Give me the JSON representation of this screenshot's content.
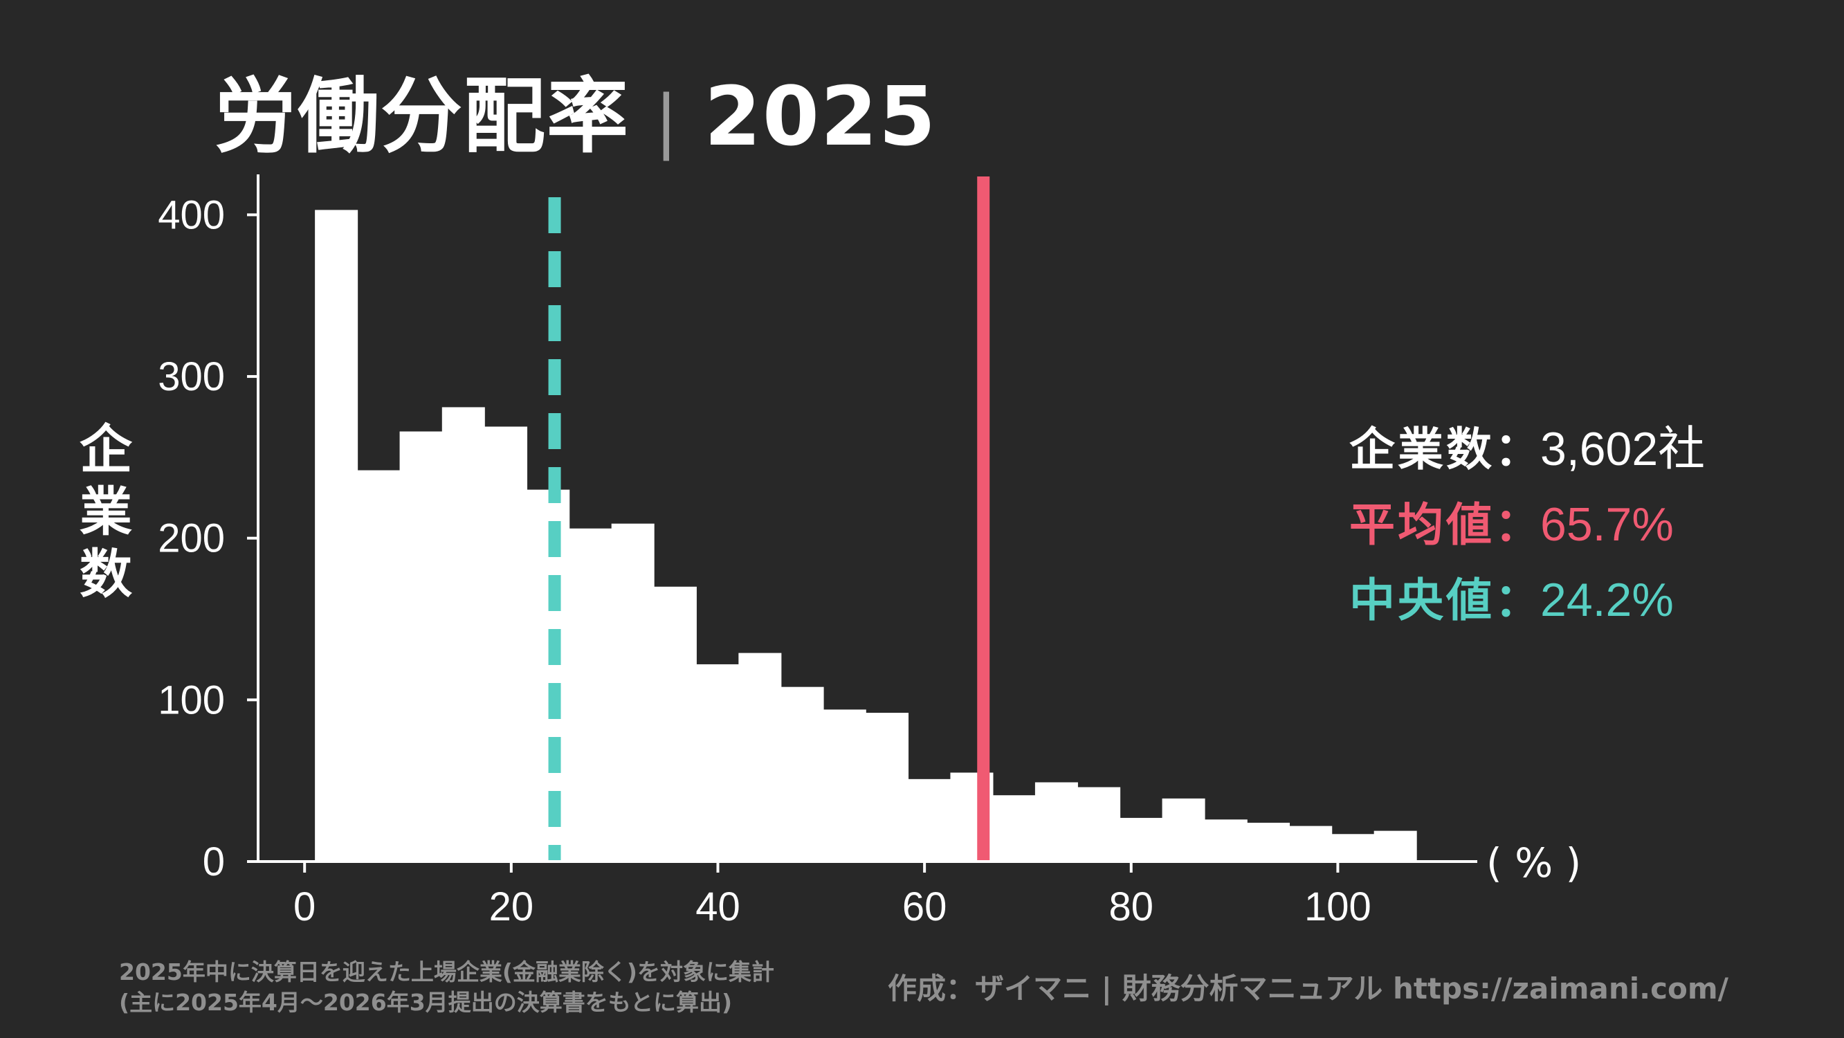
{
  "title": {
    "main": "労働分配率",
    "separator": "|",
    "year": "2025"
  },
  "stats": {
    "count_label": "企業数",
    "count_value": "3,602社",
    "mean_label": "平均値",
    "mean_value": "65.7%",
    "median_label": "中央値",
    "median_value": "24.2%",
    "colon": "："
  },
  "footer": {
    "note_line1": "2025年中に決算日を迎えた上場企業(金融業除く)を対象に集計",
    "note_line2": "(主に2025年4月〜2026年3月提出の決算書をもとに算出)",
    "credit": "作成：ザイマニ | 財務分析マニュアル https://zaimani.com/"
  },
  "colors": {
    "background": "#282828",
    "bars": "#ffffff",
    "mean_line": "#f05a72",
    "median_line": "#57cfc3",
    "footer_text": "#8f8f8f"
  },
  "chart_data": {
    "type": "bar",
    "subtype": "histogram",
    "title": "労働分配率 | 2025",
    "ylabel": "企業数",
    "xlabel": "( % )",
    "x_ticks": [
      0,
      20,
      40,
      60,
      80,
      100
    ],
    "y_ticks": [
      0,
      100,
      200,
      300,
      400
    ],
    "xlim": [
      -4.5,
      113.5
    ],
    "ylim": [
      0,
      425
    ],
    "bin_width": 4.1,
    "bins": [
      {
        "start": 1.0,
        "value": 403
      },
      {
        "start": 5.1,
        "value": 242
      },
      {
        "start": 9.2,
        "value": 266
      },
      {
        "start": 13.3,
        "value": 281
      },
      {
        "start": 17.4,
        "value": 269
      },
      {
        "start": 21.5,
        "value": 230
      },
      {
        "start": 25.6,
        "value": 206
      },
      {
        "start": 29.7,
        "value": 209
      },
      {
        "start": 33.8,
        "value": 170
      },
      {
        "start": 37.9,
        "value": 122
      },
      {
        "start": 42.0,
        "value": 129
      },
      {
        "start": 46.1,
        "value": 108
      },
      {
        "start": 50.2,
        "value": 94
      },
      {
        "start": 54.3,
        "value": 92
      },
      {
        "start": 58.4,
        "value": 51
      },
      {
        "start": 62.5,
        "value": 55
      },
      {
        "start": 66.6,
        "value": 41
      },
      {
        "start": 70.7,
        "value": 49
      },
      {
        "start": 74.8,
        "value": 46
      },
      {
        "start": 78.9,
        "value": 27
      },
      {
        "start": 83.0,
        "value": 39
      },
      {
        "start": 87.1,
        "value": 26
      },
      {
        "start": 91.2,
        "value": 24
      },
      {
        "start": 95.3,
        "value": 22
      },
      {
        "start": 99.4,
        "value": 17
      },
      {
        "start": 103.5,
        "value": 19
      }
    ],
    "reference_lines": [
      {
        "name": "平均値",
        "x": 65.7,
        "style": "solid"
      },
      {
        "name": "中央値",
        "x": 24.2,
        "style": "dashed"
      }
    ],
    "grid": false,
    "legend": "right"
  }
}
